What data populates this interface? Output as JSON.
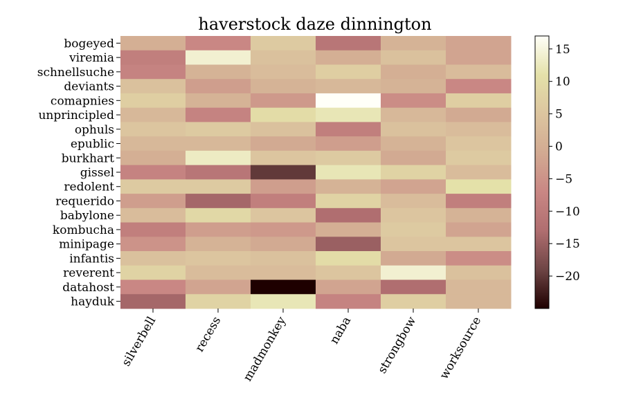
{
  "chart_data": {
    "type": "heatmap",
    "title": "haverstock daze dinnington",
    "xlabel": "",
    "ylabel": "",
    "columns": [
      "silverbell",
      "recess",
      "madmonkey",
      "naba",
      "strongbow",
      "worksource"
    ],
    "rows": [
      "bogeyed",
      "viremia",
      "schnellsuche",
      "deviants",
      "comapnies",
      "unprincipled",
      "ophuls",
      "epublic",
      "burkhart",
      "gissel",
      "redolent",
      "requerido",
      "babylone",
      "kombucha",
      "minipage",
      "infantis",
      "reverent",
      "datahost",
      "hayduk"
    ],
    "values": [
      [
        0,
        -7,
        6,
        -11,
        1,
        -2
      ],
      [
        -9,
        14,
        4,
        0,
        4,
        -2
      ],
      [
        -8,
        1,
        3,
        7,
        0,
        3
      ],
      [
        4,
        -3,
        1,
        2,
        1,
        -7
      ],
      [
        7,
        1,
        -4,
        17,
        -6,
        7
      ],
      [
        2,
        -8,
        10,
        12,
        2,
        -1
      ],
      [
        5,
        6,
        4,
        -9,
        4,
        3
      ],
      [
        2,
        2,
        -1,
        -3,
        1,
        5
      ],
      [
        0,
        13,
        5,
        6,
        -1,
        6
      ],
      [
        -8,
        -11,
        -20,
        12,
        8,
        3
      ],
      [
        6,
        6,
        -3,
        1,
        -2,
        11
      ],
      [
        -3,
        -14,
        -9,
        8,
        3,
        -9
      ],
      [
        3,
        9,
        5,
        -13,
        5,
        1
      ],
      [
        -9,
        -3,
        -4,
        0,
        6,
        -2
      ],
      [
        -5,
        1,
        -1,
        -15,
        5,
        5
      ],
      [
        4,
        5,
        4,
        10,
        -1,
        -6
      ],
      [
        8,
        3,
        3,
        5,
        14,
        4
      ],
      [
        -7,
        -2,
        -25,
        -2,
        -13,
        2
      ],
      [
        -14,
        8,
        12,
        -8,
        7,
        2
      ]
    ],
    "colorbar": {
      "ticks": [
        15,
        10,
        5,
        0,
        -5,
        -10,
        -15,
        -20
      ],
      "tick_labels": [
        "15",
        "10",
        "5",
        "0",
        "−10",
        "−15",
        "−20"
      ],
      "tick_labels_full": [
        "15",
        "10",
        "5",
        "0",
        "−5",
        "−10",
        "−15",
        "−20"
      ],
      "vmin": -25,
      "vmax": 17
    },
    "colormap": [
      "#1e0000",
      "#6e4545",
      "#b06e70",
      "#c98784",
      "#d2aa92",
      "#dcc59f",
      "#e4e1a9",
      "#fffff8"
    ],
    "grid": false
  }
}
